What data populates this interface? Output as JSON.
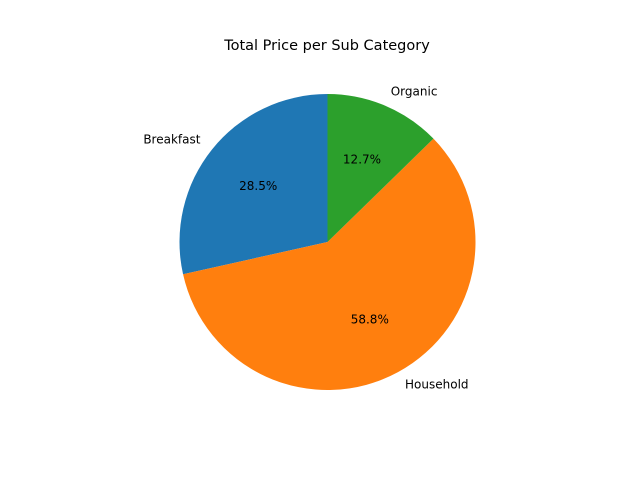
{
  "chart_data": {
    "type": "pie",
    "title": "Total Price per Sub Category",
    "start_angle_deg": 90,
    "direction": "counterclockwise",
    "slices": [
      {
        "label": "Breakfast",
        "percent": 28.5,
        "percent_label": "28.5%",
        "color": "#1f77b4"
      },
      {
        "label": "Household",
        "percent": 58.8,
        "percent_label": "58.8%",
        "color": "#ff7f0e"
      },
      {
        "label": "Organic",
        "percent": 12.7,
        "percent_label": "12.7%",
        "color": "#2ca02c"
      }
    ]
  }
}
